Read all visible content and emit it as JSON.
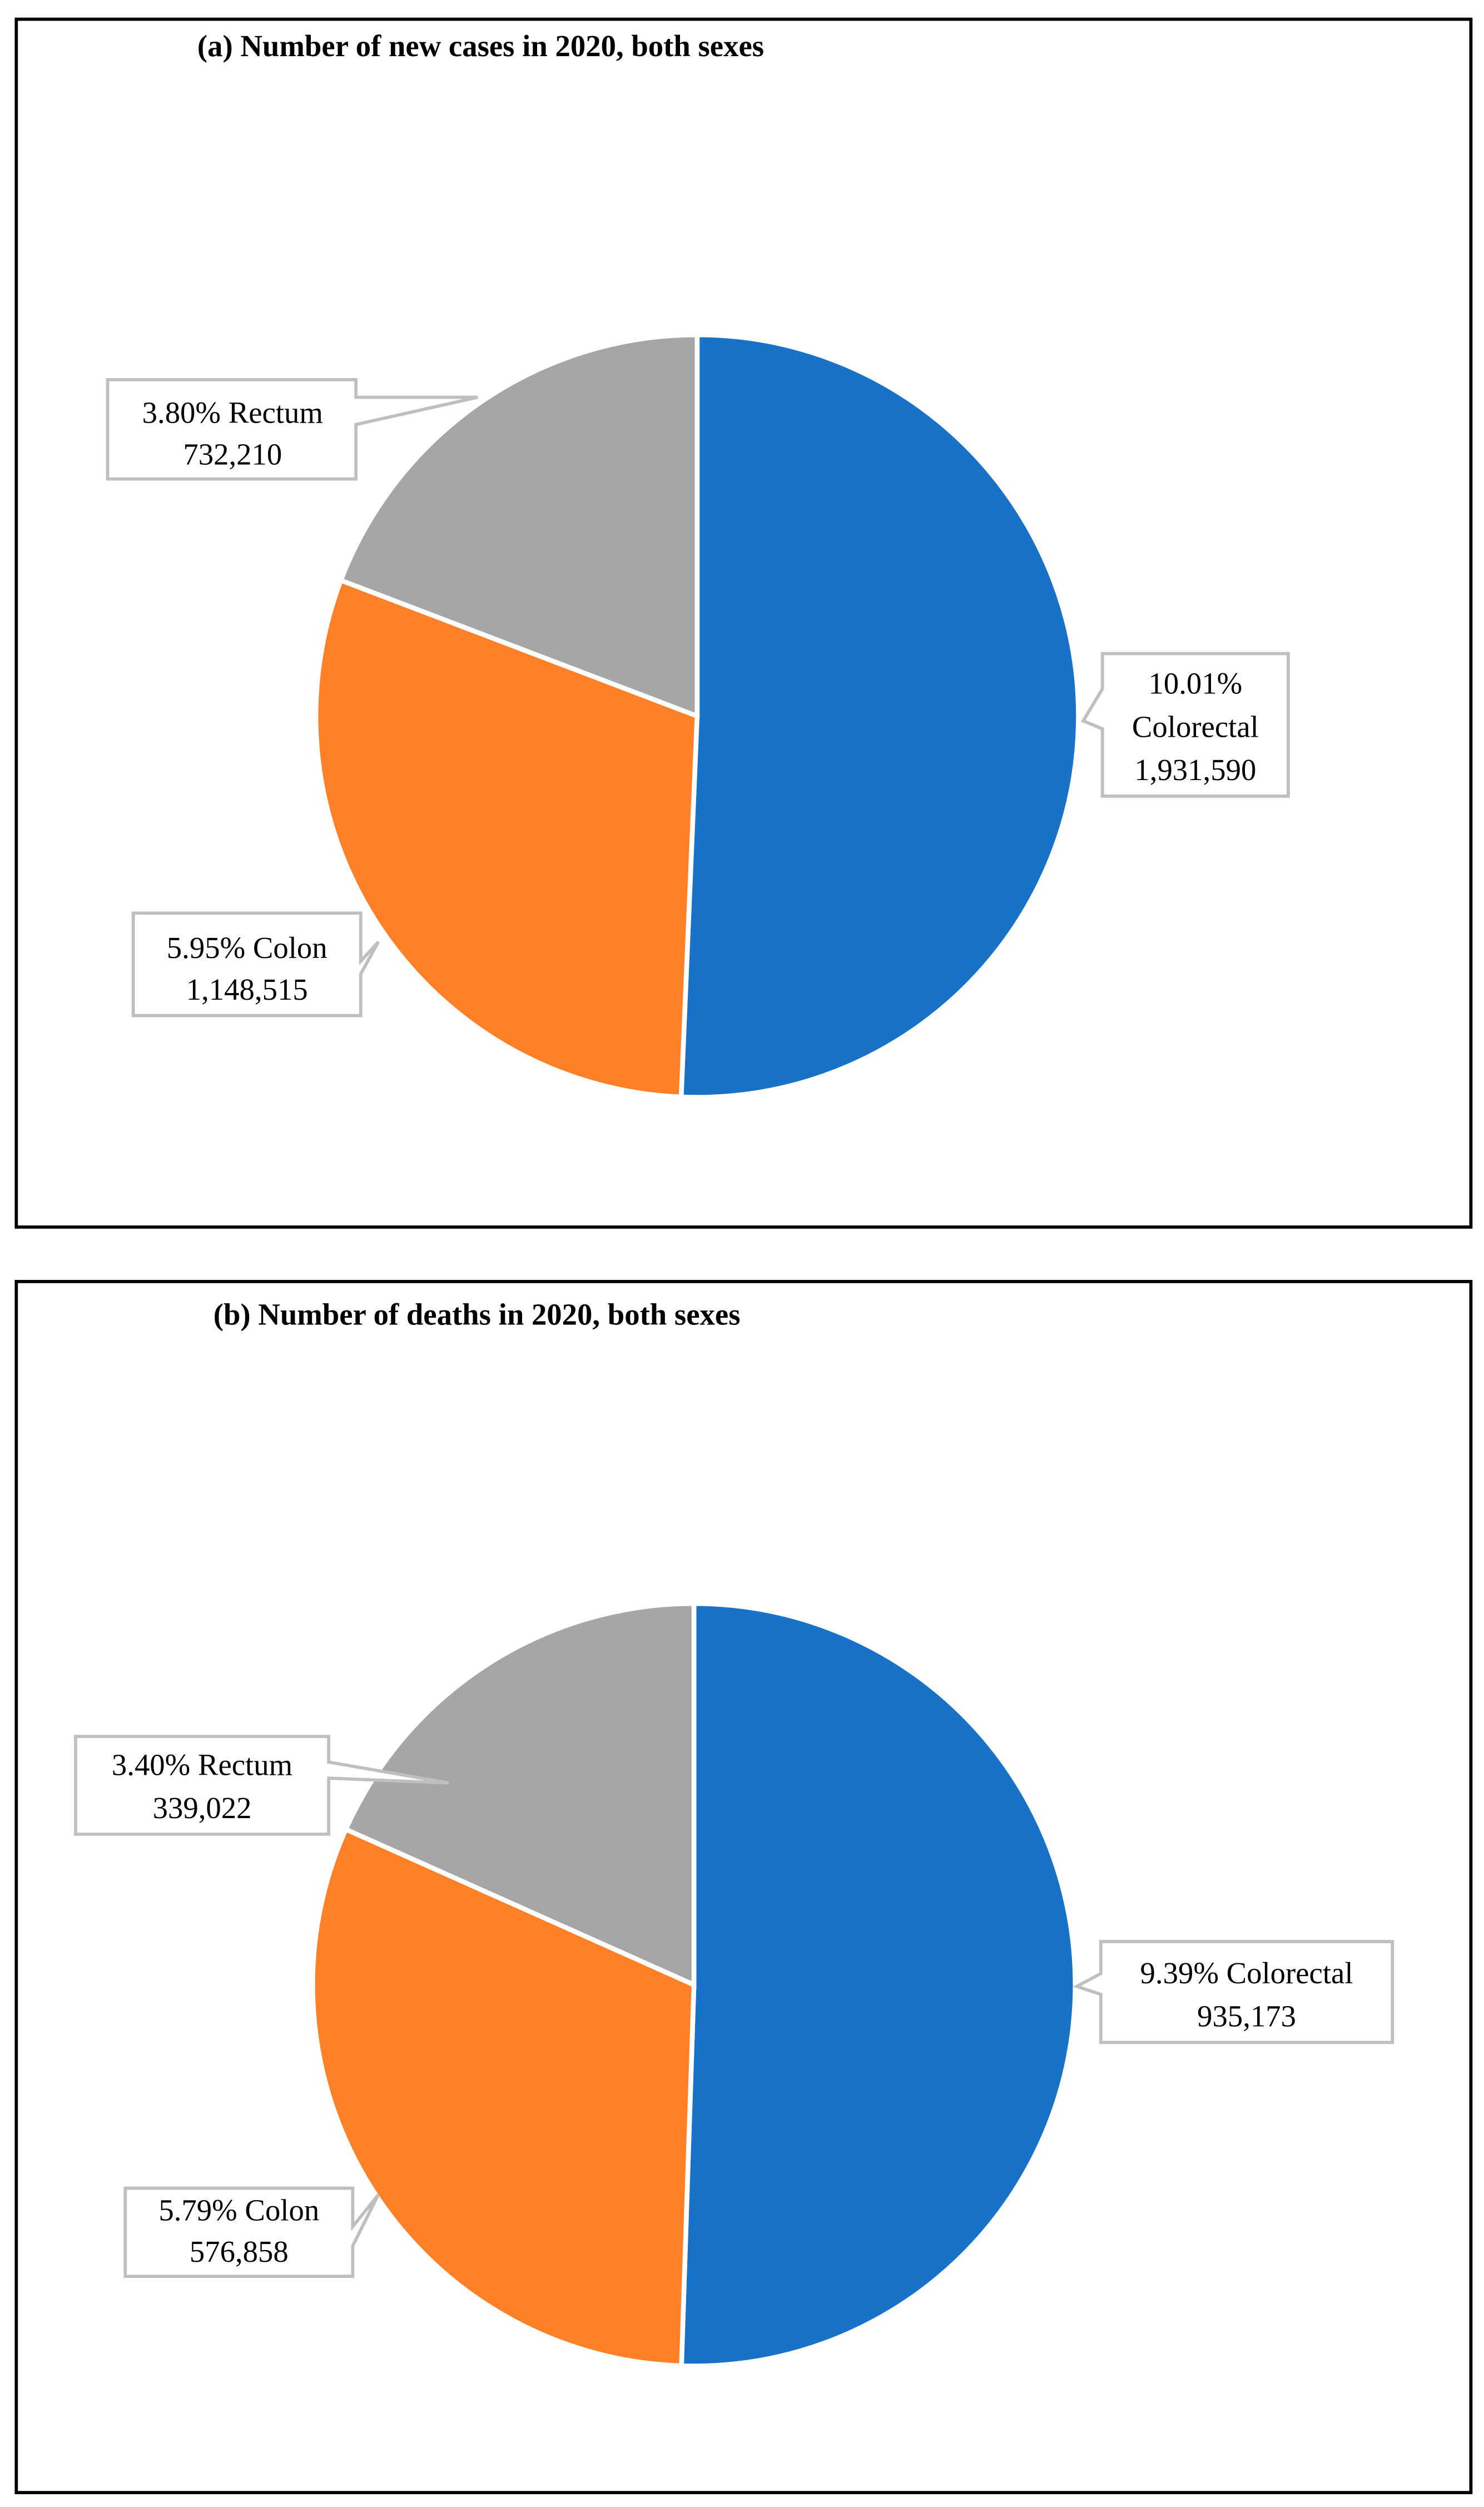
{
  "chart_data": [
    {
      "type": "pie",
      "title": "(a) Number of new cases in 2020, both sexes",
      "slices": [
        {
          "name": "Colorectal",
          "value": 1931590,
          "percent_label": "10.01%",
          "label_lines": [
            "10.01%",
            "Colorectal",
            "1,931,590"
          ],
          "color": "#1872C8"
        },
        {
          "name": "Colon",
          "value": 1148515,
          "percent_label": "5.95%",
          "label_lines": [
            "5.95% Colon",
            "1,148,515"
          ],
          "color": "#FF8027"
        },
        {
          "name": "Rectum",
          "value": 732210,
          "percent_label": "3.80%",
          "label_lines": [
            "3.80% Rectum",
            "732,210"
          ],
          "color": "#A6A6A6"
        }
      ]
    },
    {
      "type": "pie",
      "title": "(b) Number of deaths in 2020, both sexes",
      "slices": [
        {
          "name": "Colorectal",
          "value": 935173,
          "percent_label": "9.39%",
          "label_lines": [
            "9.39% Colorectal",
            "935,173"
          ],
          "color": "#1872C8"
        },
        {
          "name": "Colon",
          "value": 576858,
          "percent_label": "5.79%",
          "label_lines": [
            "5.79% Colon",
            "576,858"
          ],
          "color": "#FF8027"
        },
        {
          "name": "Rectum",
          "value": 339022,
          "percent_label": "3.40%",
          "label_lines": [
            "3.40% Rectum",
            "339,022"
          ],
          "color": "#A6A6A6"
        }
      ]
    }
  ]
}
